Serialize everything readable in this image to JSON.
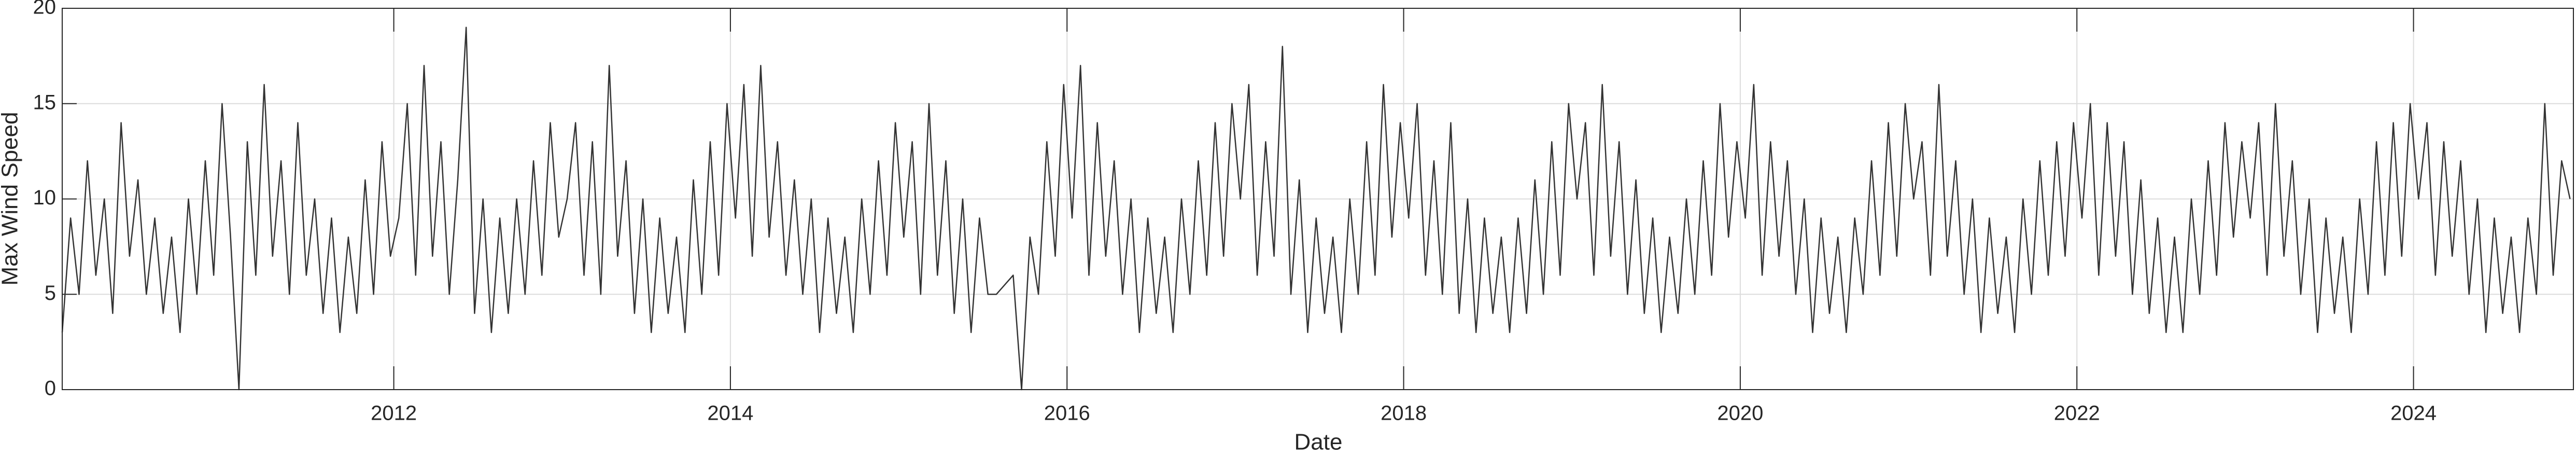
{
  "chart_data": {
    "type": "line",
    "xlabel": "Date",
    "ylabel": "Max Wind Speed",
    "xlim": [
      2010.03,
      2024.95
    ],
    "ylim": [
      0,
      20
    ],
    "xticks": [
      2012,
      2014,
      2016,
      2018,
      2020,
      2022,
      2024
    ],
    "yticks": [
      0,
      5,
      10,
      15,
      20
    ],
    "grid": true,
    "series": [
      {
        "color": "#333333",
        "x": [
          2010.03,
          2010.08,
          2010.13,
          2010.18,
          2010.23,
          2010.28,
          2010.33,
          2010.38,
          2010.43,
          2010.48,
          2010.53,
          2010.58,
          2010.63,
          2010.68,
          2010.73,
          2010.78,
          2010.83,
          2010.88,
          2010.93,
          2010.98,
          2011.03,
          2011.08,
          2011.13,
          2011.18,
          2011.23,
          2011.28,
          2011.33,
          2011.38,
          2011.43,
          2011.48,
          2011.53,
          2011.58,
          2011.63,
          2011.68,
          2011.73,
          2011.78,
          2011.83,
          2011.88,
          2011.93,
          2011.98,
          2012.03,
          2012.08,
          2012.13,
          2012.18,
          2012.23,
          2012.28,
          2012.33,
          2012.38,
          2012.43,
          2012.48,
          2012.53,
          2012.58,
          2012.63,
          2012.68,
          2012.73,
          2012.78,
          2012.83,
          2012.88,
          2012.93,
          2012.98,
          2013.03,
          2013.08,
          2013.13,
          2013.18,
          2013.23,
          2013.28,
          2013.33,
          2013.38,
          2013.43,
          2013.48,
          2013.53,
          2013.58,
          2013.63,
          2013.68,
          2013.73,
          2013.78,
          2013.83,
          2013.88,
          2013.93,
          2013.98,
          2014.03,
          2014.08,
          2014.13,
          2014.18,
          2014.23,
          2014.28,
          2014.33,
          2014.38,
          2014.43,
          2014.48,
          2014.53,
          2014.58,
          2014.63,
          2014.68,
          2014.73,
          2014.78,
          2014.83,
          2014.88,
          2014.93,
          2014.98,
          2015.03,
          2015.08,
          2015.13,
          2015.18,
          2015.23,
          2015.28,
          2015.33,
          2015.38,
          2015.43,
          2015.48,
          2015.53,
          2015.58,
          2015.63,
          2015.68,
          2015.73,
          2015.78,
          2015.83,
          2015.88,
          2015.93,
          2015.98,
          2016.03,
          2016.08,
          2016.13,
          2016.18,
          2016.23,
          2016.28,
          2016.33,
          2016.38,
          2016.43,
          2016.48,
          2016.53,
          2016.58,
          2016.63,
          2016.68,
          2016.73,
          2016.78,
          2016.83,
          2016.88,
          2016.93,
          2016.98,
          2017.03,
          2017.08,
          2017.13,
          2017.18,
          2017.23,
          2017.28,
          2017.33,
          2017.38,
          2017.43,
          2017.48,
          2017.53,
          2017.58,
          2017.63,
          2017.68,
          2017.73,
          2017.78,
          2017.83,
          2017.88,
          2017.93,
          2017.98,
          2018.03,
          2018.08,
          2018.13,
          2018.18,
          2018.23,
          2018.28,
          2018.33,
          2018.38,
          2018.43,
          2018.48,
          2018.53,
          2018.58,
          2018.63,
          2018.68,
          2018.73,
          2018.78,
          2018.83,
          2018.88,
          2018.93,
          2018.98,
          2019.03,
          2019.08,
          2019.13,
          2019.18,
          2019.23,
          2019.28,
          2019.33,
          2019.38,
          2019.43,
          2019.48,
          2019.53,
          2019.58,
          2019.63,
          2019.68,
          2019.73,
          2019.78,
          2019.83,
          2019.88,
          2019.93,
          2019.98,
          2020.03,
          2020.08,
          2020.13,
          2020.18,
          2020.23,
          2020.28,
          2020.33,
          2020.38,
          2020.43,
          2020.48,
          2020.53,
          2020.58,
          2020.63,
          2020.68,
          2020.73,
          2020.78,
          2020.83,
          2020.88,
          2020.93,
          2020.98,
          2021.03,
          2021.08,
          2021.13,
          2021.18,
          2021.23,
          2021.28,
          2021.33,
          2021.38,
          2021.43,
          2021.48,
          2021.53,
          2021.58,
          2021.63,
          2021.68,
          2021.73,
          2021.78,
          2021.83,
          2021.88,
          2021.93,
          2021.98,
          2022.03,
          2022.08,
          2022.13,
          2022.18,
          2022.23,
          2022.28,
          2022.33,
          2022.38,
          2022.43,
          2022.48,
          2022.53,
          2022.58,
          2022.63,
          2022.68,
          2022.73,
          2022.78,
          2022.83,
          2022.88,
          2022.93,
          2022.98,
          2023.03,
          2023.08,
          2023.13,
          2023.18,
          2023.23,
          2023.28,
          2023.33,
          2023.38,
          2023.43,
          2023.48,
          2023.53,
          2023.58,
          2023.63,
          2023.68,
          2023.73,
          2023.78,
          2023.83,
          2023.88,
          2023.93,
          2023.98,
          2024.03,
          2024.08,
          2024.13,
          2024.18,
          2024.23,
          2024.28,
          2024.33,
          2024.38,
          2024.43,
          2024.48,
          2024.53,
          2024.58,
          2024.63,
          2024.68,
          2024.73,
          2024.78,
          2024.83,
          2024.88,
          2024.93
        ],
        "values": [
          3,
          9,
          5,
          12,
          6,
          10,
          4,
          14,
          7,
          11,
          5,
          9,
          4,
          8,
          3,
          10,
          5,
          12,
          6,
          15,
          8,
          0,
          13,
          6,
          16,
          7,
          12,
          5,
          14,
          6,
          10,
          4,
          9,
          3,
          8,
          4,
          11,
          5,
          13,
          7,
          9,
          15,
          6,
          17,
          7,
          13,
          5,
          11,
          19,
          4,
          10,
          3,
          9,
          4,
          10,
          5,
          12,
          6,
          14,
          8,
          10,
          14,
          6,
          13,
          5,
          17,
          7,
          12,
          4,
          10,
          3,
          9,
          4,
          8,
          3,
          11,
          5,
          13,
          6,
          15,
          9,
          16,
          7,
          17,
          8,
          13,
          6,
          11,
          5,
          10,
          3,
          9,
          4,
          8,
          3,
          10,
          5,
          12,
          6,
          14,
          8,
          13,
          5,
          15,
          6,
          12,
          4,
          10,
          3,
          9,
          5,
          5,
          5.5,
          6,
          0,
          8,
          5,
          13,
          7,
          16,
          9,
          17,
          6,
          14,
          7,
          12,
          5,
          10,
          3,
          9,
          4,
          8,
          3,
          10,
          5,
          12,
          6,
          14,
          7,
          15,
          10,
          16,
          6,
          13,
          7,
          18,
          5,
          11,
          3,
          9,
          4,
          8,
          3,
          10,
          5,
          13,
          6,
          16,
          8,
          14,
          9,
          15,
          6,
          12,
          5,
          14,
          4,
          10,
          3,
          9,
          4,
          8,
          3,
          9,
          4,
          11,
          5,
          13,
          6,
          15,
          10,
          14,
          6,
          16,
          7,
          13,
          5,
          11,
          4,
          9,
          3,
          8,
          4,
          10,
          5,
          12,
          6,
          15,
          8,
          13,
          9,
          16,
          6,
          13,
          7,
          12,
          5,
          10,
          3,
          9,
          4,
          8,
          3,
          9,
          5,
          12,
          6,
          14,
          7,
          15,
          10,
          13,
          6,
          16,
          7,
          12,
          5,
          10,
          3,
          9,
          4,
          8,
          3,
          10,
          5,
          12,
          6,
          13,
          7,
          14,
          9,
          15,
          6,
          14,
          7,
          13,
          5,
          11,
          4,
          9,
          3,
          8,
          3,
          10,
          5,
          12,
          6,
          14,
          8,
          13,
          9,
          14,
          6,
          15,
          7,
          12,
          5,
          10,
          3,
          9,
          4,
          8,
          3,
          10,
          5,
          13,
          6,
          14,
          7,
          15,
          10,
          14,
          6,
          13,
          7,
          12,
          5,
          10,
          3,
          9,
          4,
          8,
          3,
          9,
          5,
          15,
          6,
          12,
          10
        ]
      }
    ]
  }
}
